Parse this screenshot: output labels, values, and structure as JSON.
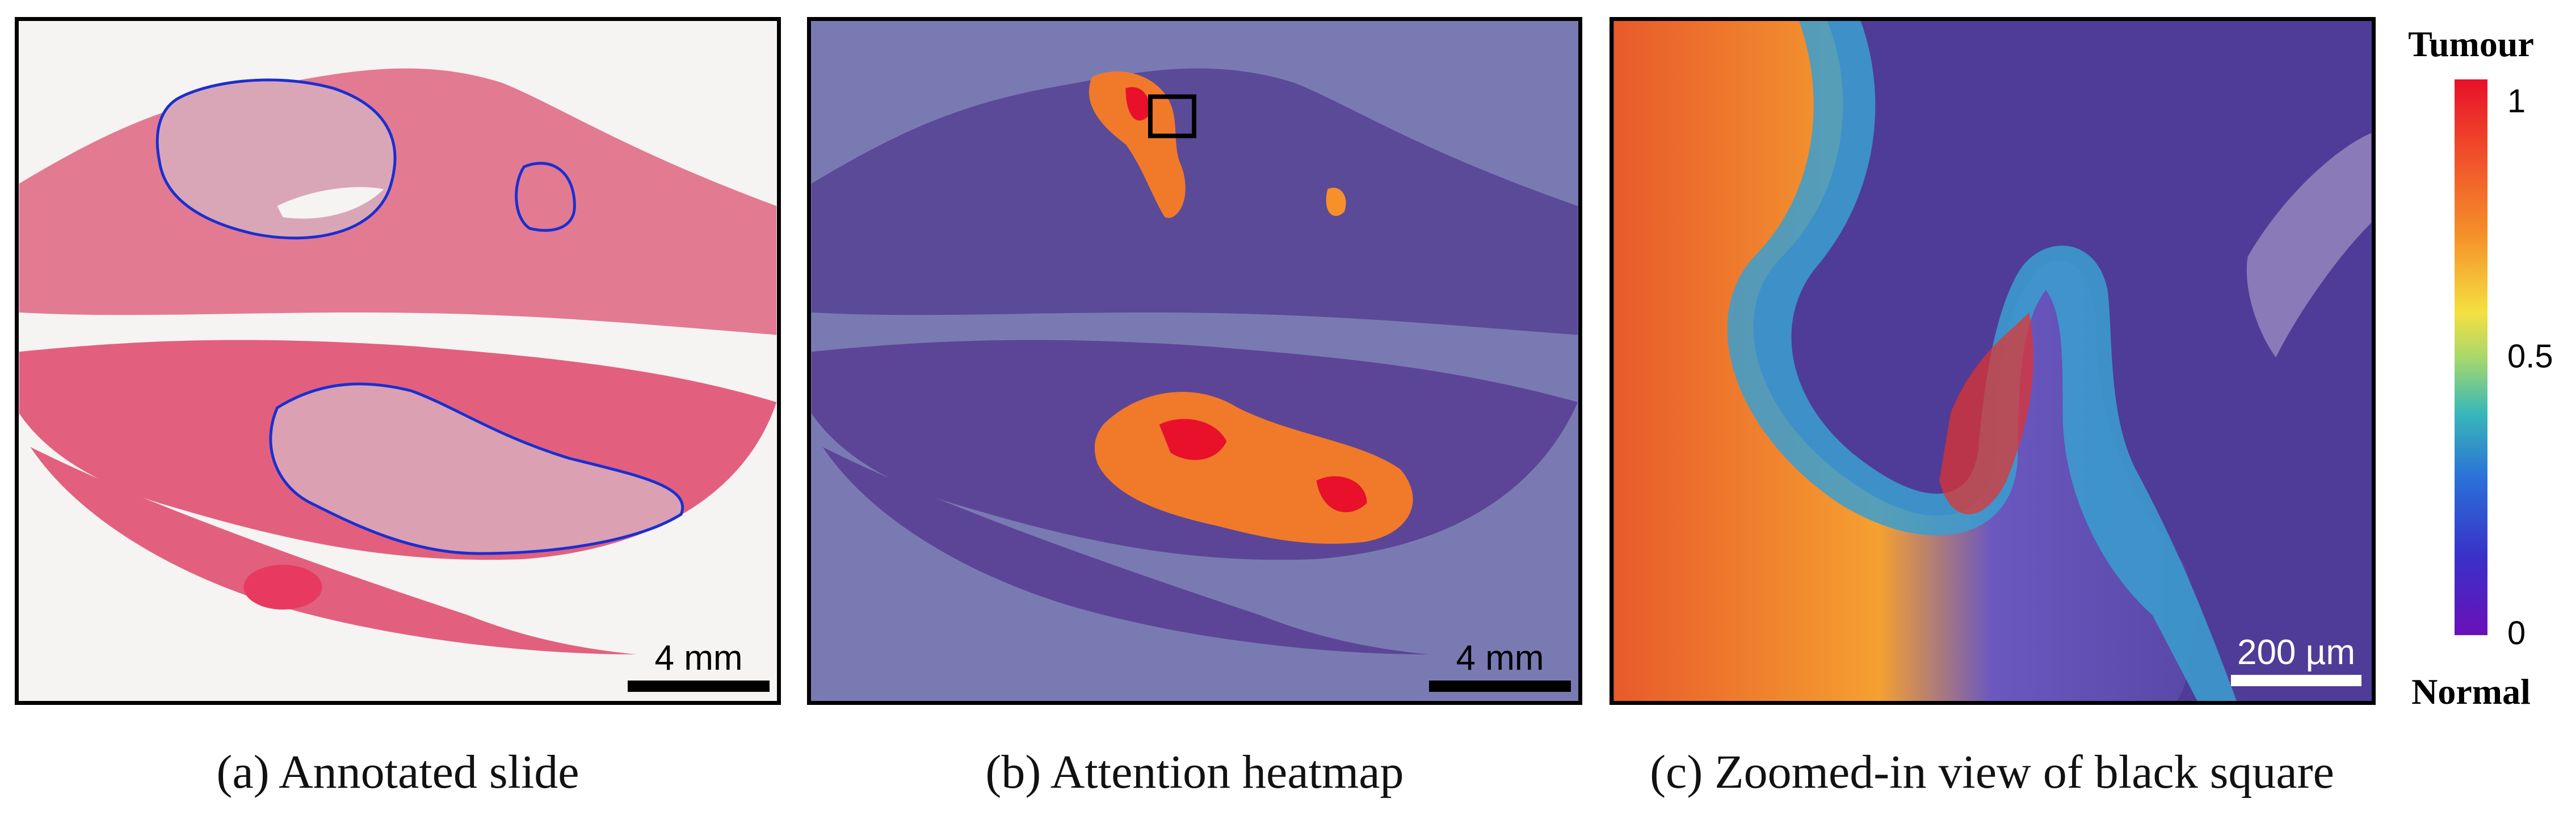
{
  "panels": {
    "a": {
      "caption": "(a) Annotated slide",
      "scale_label": "4 mm"
    },
    "b": {
      "caption": "(b) Attention heatmap",
      "scale_label": "4 mm"
    },
    "c": {
      "caption": "(c) Zoomed-in view of black square",
      "scale_label": "200 µm"
    }
  },
  "colorbar": {
    "top_label": "Tumour",
    "bottom_label": "Normal",
    "ticks": [
      "1",
      "0.5",
      "0"
    ]
  },
  "colors": {
    "tissue_pink": "#e2607e",
    "tumour_annotation": "#1a2fd0",
    "heatmap_high": "#e8102a",
    "heatmap_low": "#6a10b8"
  }
}
